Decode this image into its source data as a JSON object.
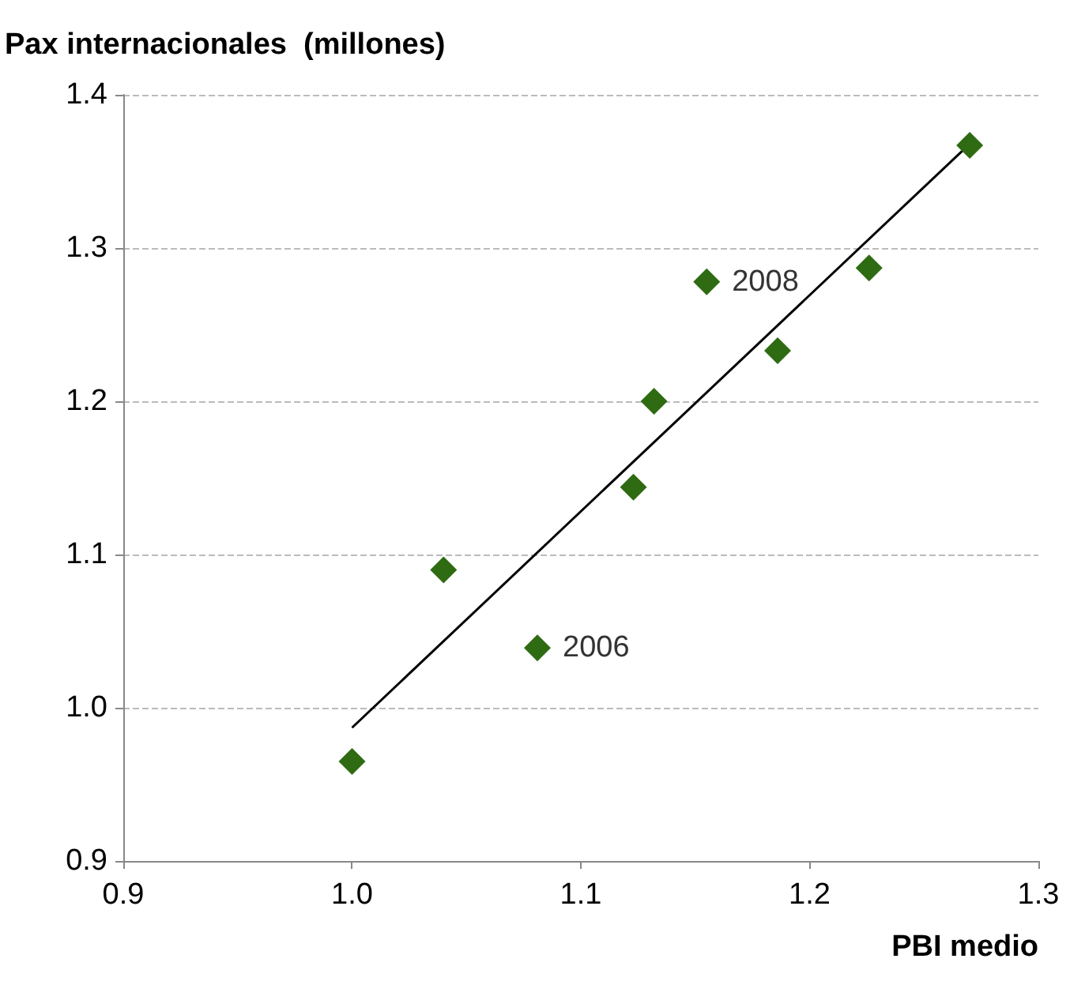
{
  "chart_data": {
    "type": "scatter",
    "ylabel": "Pax internacionales  (millones)",
    "xlabel": "PBI medio",
    "xlim": [
      0.9,
      1.3
    ],
    "xticks": [
      {
        "value": 0.9,
        "label": "0.9"
      },
      {
        "value": 1.0,
        "label": "1.0"
      },
      {
        "value": 1.1,
        "label": "1.1"
      },
      {
        "value": 1.2,
        "label": "1.2"
      },
      {
        "value": 1.3,
        "label": "1.3"
      }
    ],
    "ylim": [
      0.9,
      1.4
    ],
    "yticks": [
      {
        "value": 0.9,
        "label": "0.9"
      },
      {
        "value": 1.0,
        "label": "1.0"
      },
      {
        "value": 1.1,
        "label": "1.1"
      },
      {
        "value": 1.2,
        "label": "1.2"
      },
      {
        "value": 1.3,
        "label": "1.3"
      },
      {
        "value": 1.4,
        "label": "1.4"
      }
    ],
    "grid": "y",
    "marker": "diamond",
    "series": [
      {
        "color": "#2e6b12",
        "x": [
          1.0,
          1.04,
          1.081,
          1.123,
          1.132,
          1.155,
          1.186,
          1.226,
          1.27
        ],
        "values": [
          0.965,
          1.09,
          1.039,
          1.144,
          1.2,
          1.278,
          1.233,
          1.287,
          1.367
        ]
      },
      {
        "type": "line",
        "marker": "none",
        "color": "#000000",
        "x": [
          1.0,
          1.27
        ],
        "values": [
          0.987,
          1.368
        ]
      }
    ],
    "annotations": [
      {
        "text": "2008",
        "x": 1.155,
        "y": 1.278
      },
      {
        "text": "2006",
        "x": 1.081,
        "y": 1.039
      }
    ]
  }
}
